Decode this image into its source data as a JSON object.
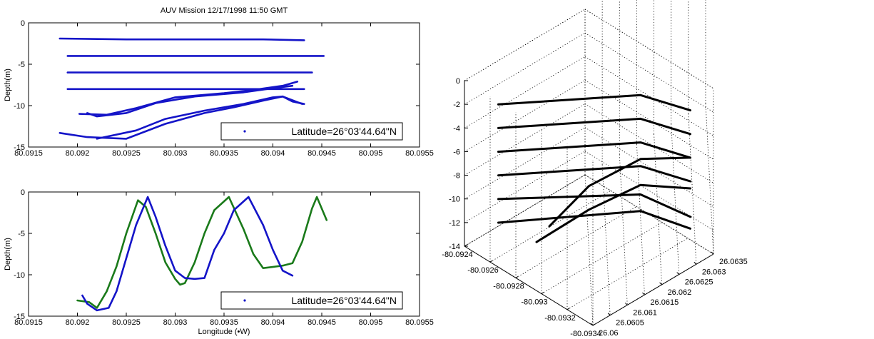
{
  "chart_data": [
    {
      "type": "line",
      "title": "AUV Mission 12/17/1998 11:50 GMT",
      "xlabel": "",
      "ylabel": "Depth(m)",
      "xlim": [
        80.0915,
        80.0955
      ],
      "ylim": [
        -15,
        0
      ],
      "xticks": [
        "80.0915",
        "80.092",
        "80.0925",
        "80.093",
        "80.0935",
        "80.094",
        "80.0945",
        "80.095",
        "80.0955"
      ],
      "yticks": [
        "0",
        "-5",
        "-10",
        "-15"
      ],
      "legend": {
        "label": "Latitude=26°03'44.64\"N",
        "position": "bottom-right"
      },
      "colors": [
        "#1414c8"
      ],
      "series": [
        {
          "color": "#1414c8",
          "points": [
            [
              80.09182,
              -1.9
            ],
            [
              80.0925,
              -2.0
            ],
            [
              80.0932,
              -2.0
            ],
            [
              80.0939,
              -2.0
            ],
            [
              80.09432,
              -2.1
            ]
          ]
        },
        {
          "color": "#1414c8",
          "points": [
            [
              80.0919,
              -4.0
            ],
            [
              80.0926,
              -4.0
            ],
            [
              80.0933,
              -4.0
            ],
            [
              80.094,
              -4.0
            ],
            [
              80.09452,
              -4.0
            ]
          ]
        },
        {
          "color": "#1414c8",
          "points": [
            [
              80.0919,
              -6.0
            ],
            [
              80.0927,
              -6.0
            ],
            [
              80.0934,
              -6.0
            ],
            [
              80.094,
              -6.0
            ],
            [
              80.0944,
              -6.0
            ]
          ]
        },
        {
          "color": "#1414c8",
          "points": [
            [
              80.0919,
              -8.0
            ],
            [
              80.0927,
              -8.0
            ],
            [
              80.0934,
              -8.0
            ],
            [
              80.094,
              -8.0
            ],
            [
              80.09432,
              -8.0
            ]
          ]
        },
        {
          "color": "#1414c8",
          "points": [
            [
              80.09202,
              -11.0
            ],
            [
              80.0923,
              -11.1
            ],
            [
              80.0926,
              -10.3
            ],
            [
              80.093,
              -9.0
            ],
            [
              80.0935,
              -8.5
            ],
            [
              80.0938,
              -8.1
            ],
            [
              80.0941,
              -7.6
            ],
            [
              80.09425,
              -7.1
            ]
          ]
        },
        {
          "color": "#1414c8",
          "points": [
            [
              80.0921,
              -10.9
            ],
            [
              80.0922,
              -11.3
            ],
            [
              80.0925,
              -10.9
            ],
            [
              80.0928,
              -9.7
            ],
            [
              80.0932,
              -8.9
            ],
            [
              80.0937,
              -8.4
            ],
            [
              80.094,
              -7.9
            ],
            [
              80.0942,
              -7.6
            ]
          ]
        },
        {
          "color": "#1414c8",
          "points": [
            [
              80.09182,
              -13.3
            ],
            [
              80.0921,
              -13.8
            ],
            [
              80.0925,
              -14.0
            ],
            [
              80.0929,
              -12.2
            ],
            [
              80.0933,
              -10.9
            ],
            [
              80.0936,
              -10.2
            ],
            [
              80.0939,
              -9.4
            ],
            [
              80.0941,
              -8.9
            ],
            [
              80.0943,
              -9.8
            ]
          ]
        },
        {
          "color": "#1414c8",
          "points": [
            [
              80.0922,
              -14.0
            ],
            [
              80.0926,
              -13.0
            ],
            [
              80.0929,
              -11.6
            ],
            [
              80.0933,
              -10.6
            ],
            [
              80.0937,
              -9.8
            ],
            [
              80.094,
              -9.0
            ],
            [
              80.0941,
              -8.9
            ],
            [
              80.0942,
              -9.5
            ],
            [
              80.09432,
              -9.8
            ]
          ]
        }
      ]
    },
    {
      "type": "line",
      "title": "",
      "xlabel": "Longitude (•W)",
      "ylabel": "Depth(m)",
      "xlim": [
        80.0915,
        80.0955
      ],
      "ylim": [
        -15,
        0
      ],
      "xticks": [
        "80.0915",
        "80.092",
        "80.0925",
        "80.093",
        "80.0935",
        "80.094",
        "80.0945",
        "80.095",
        "80.0955"
      ],
      "yticks": [
        "0",
        "-5",
        "-10",
        "-15"
      ],
      "legend": {
        "label": "Latitude=26°03'44.64\"N",
        "position": "bottom-right"
      },
      "colors": [
        "#1414c8",
        "#1a7a1a"
      ],
      "series": [
        {
          "color": "#1a7a1a",
          "points": [
            [
              80.092,
              -13.1
            ],
            [
              80.09212,
              -13.3
            ],
            [
              80.0922,
              -14.0
            ],
            [
              80.0923,
              -12.0
            ],
            [
              80.0924,
              -9.0
            ],
            [
              80.0925,
              -5.0
            ],
            [
              80.09262,
              -1.0
            ],
            [
              80.0927,
              -1.8
            ],
            [
              80.0928,
              -5.0
            ],
            [
              80.0929,
              -8.5
            ],
            [
              80.093,
              -10.5
            ],
            [
              80.09305,
              -11.2
            ],
            [
              80.0931,
              -11.0
            ],
            [
              80.0932,
              -8.5
            ],
            [
              80.0933,
              -5.0
            ],
            [
              80.0934,
              -2.2
            ],
            [
              80.09355,
              -0.6
            ],
            [
              80.0937,
              -4.5
            ],
            [
              80.0938,
              -7.5
            ],
            [
              80.0939,
              -9.2
            ],
            [
              80.0941,
              -8.9
            ],
            [
              80.0942,
              -8.6
            ],
            [
              80.0943,
              -6.0
            ],
            [
              80.0944,
              -2.0
            ],
            [
              80.09445,
              -0.6
            ],
            [
              80.09455,
              -3.4
            ]
          ]
        },
        {
          "color": "#1414c8",
          "points": [
            [
              80.09205,
              -12.5
            ],
            [
              80.0921,
              -13.5
            ],
            [
              80.0922,
              -14.3
            ],
            [
              80.09232,
              -14.0
            ],
            [
              80.0924,
              -12.0
            ],
            [
              80.0925,
              -8.0
            ],
            [
              80.0926,
              -4.0
            ],
            [
              80.09272,
              -0.6
            ],
            [
              80.0928,
              -3.0
            ],
            [
              80.0929,
              -6.5
            ],
            [
              80.093,
              -9.5
            ],
            [
              80.0931,
              -10.4
            ],
            [
              80.0932,
              -10.5
            ],
            [
              80.0933,
              -10.4
            ],
            [
              80.0934,
              -7.0
            ],
            [
              80.0935,
              -5.0
            ],
            [
              80.0936,
              -2.2
            ],
            [
              80.09375,
              -0.6
            ],
            [
              80.0939,
              -4.0
            ],
            [
              80.094,
              -7.0
            ],
            [
              80.0941,
              -9.5
            ],
            [
              80.0942,
              -10.1
            ]
          ]
        }
      ]
    },
    {
      "type": "line",
      "title": "",
      "xlabel": "",
      "ylabel": "",
      "zlim": [
        -14,
        0
      ],
      "xlim": [
        -80.0934,
        -80.0924
      ],
      "ylim": [
        26.06,
        26.0635
      ],
      "zticks": [
        "0",
        "-2",
        "-4",
        "-6",
        "-8",
        "-10",
        "-12",
        "-14"
      ],
      "xticks": [
        "-80.0924",
        "-80.0926",
        "-80.0928",
        "-80.093",
        "-80.0932",
        "-80.0934"
      ],
      "yticks": [
        "26.06",
        "26.0605",
        "26.061",
        "26.0615",
        "26.062",
        "26.0625",
        "26.063",
        "26.0635"
      ],
      "grid": true,
      "colors": [
        "#000000"
      ],
      "series": [
        {
          "color": "#000000",
          "points": [
            [
              -80.09253,
              26.0605,
              -2.0
            ],
            [
              -80.09302,
              26.0628,
              -1.9
            ],
            [
              -80.0933,
              26.0632,
              -2.0
            ]
          ]
        },
        {
          "color": "#000000",
          "points": [
            [
              -80.09253,
              26.0605,
              -4.0
            ],
            [
              -80.09302,
              26.0628,
              -3.9
            ],
            [
              -80.0933,
              26.0632,
              -4.0
            ]
          ]
        },
        {
          "color": "#000000",
          "points": [
            [
              -80.09253,
              26.0605,
              -6.0
            ],
            [
              -80.09302,
              26.0628,
              -5.9
            ],
            [
              -80.0933,
              26.0632,
              -6.0
            ]
          ]
        },
        {
          "color": "#000000",
          "points": [
            [
              -80.09253,
              26.0605,
              -8.0
            ],
            [
              -80.09302,
              26.0628,
              -7.9
            ],
            [
              -80.0933,
              26.0632,
              -8.0
            ]
          ]
        },
        {
          "color": "#000000",
          "points": [
            [
              -80.09253,
              26.0605,
              -10.0
            ],
            [
              -80.09302,
              26.0628,
              -10.3
            ],
            [
              -80.0933,
              26.0632,
              -11.0
            ]
          ]
        },
        {
          "color": "#000000",
          "points": [
            [
              -80.09253,
              26.0605,
              -12.0
            ],
            [
              -80.09302,
              26.0628,
              -11.7
            ],
            [
              -80.0933,
              26.0632,
              -12.0
            ]
          ]
        },
        {
          "color": "#000000",
          "points": [
            [
              -80.0929,
              26.0606,
              -10.0
            ],
            [
              -80.09302,
              26.0613,
              -7.0
            ],
            [
              -80.09302,
              26.0628,
              -7.3
            ],
            [
              -80.0933,
              26.0632,
              -6.0
            ]
          ]
        },
        {
          "color": "#000000",
          "points": [
            [
              -80.0928,
              26.0606,
              -12.0
            ],
            [
              -80.09302,
              26.0613,
              -9.0
            ],
            [
              -80.09302,
              26.0628,
              -9.5
            ],
            [
              -80.0933,
              26.0632,
              -8.6
            ]
          ]
        }
      ]
    }
  ]
}
